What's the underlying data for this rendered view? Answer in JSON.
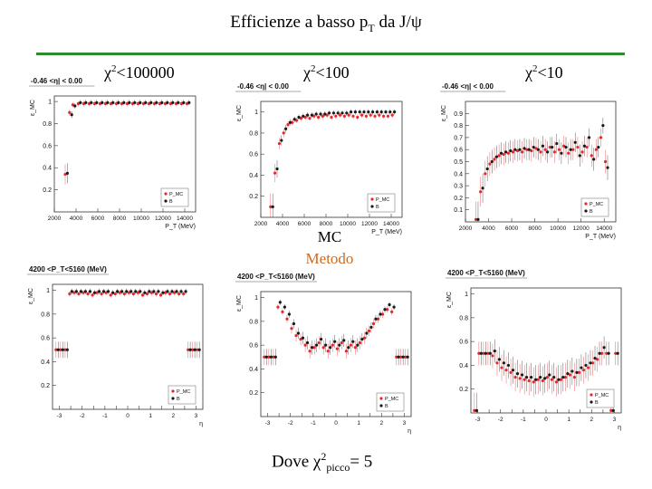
{
  "header": {
    "title_main": "Efficienze a basso p",
    "title_sub": "T",
    "title_tail": " da J/ψ"
  },
  "columns": [
    {
      "chi_base": "χ",
      "chi_sup": "2",
      "chi_tail": "<100000"
    },
    {
      "chi_base": "χ",
      "chi_sup": "2",
      "chi_tail": "<100"
    },
    {
      "chi_base": "χ",
      "chi_sup": "2",
      "chi_tail": "<10"
    }
  ],
  "method": {
    "line1": "MC",
    "line2": "Metodo",
    "line2_color": "#d2691e"
  },
  "footer": {
    "prefix": "Dove χ",
    "sup": "2",
    "sub": "picco",
    "suffix": "= 5"
  },
  "colors": {
    "mc": "#e8262c",
    "method": "#1a1a1a",
    "accent_rule": "#2e8b2e"
  },
  "chart_data": [
    {
      "type": "scatter",
      "cut": "-0.46 <η| < 0.00",
      "ylabel": "ε_MC",
      "xlabel": "P_T (MeV)",
      "xlim": [
        2000,
        15000
      ],
      "ylim": [
        0,
        1.05
      ],
      "xticks": [
        2000,
        4000,
        6000,
        8000,
        10000,
        12000,
        14000
      ],
      "xtick_labels": [
        "2000",
        "4000",
        "6000",
        "8000",
        "10000",
        "12000",
        "14000"
      ],
      "yticks": [
        0.2,
        0.4,
        0.6,
        0.8,
        1
      ],
      "ytick_labels": [
        "0.2",
        "0.4",
        "0.6",
        "0.8",
        "1"
      ],
      "legend": [
        "P_MC",
        "B"
      ],
      "series": [
        {
          "name": "P_MC",
          "x": [
            3100,
            3500,
            3800,
            4300,
            4800,
            5300,
            5800,
            6300,
            6800,
            7300,
            7800,
            8300,
            8800,
            9300,
            9800,
            10300,
            10800,
            11300,
            11800,
            12300,
            12800,
            13300,
            13800,
            14300
          ],
          "y": [
            0.34,
            0.9,
            0.97,
            0.98,
            0.98,
            0.98,
            0.98,
            0.98,
            0.98,
            0.98,
            0.98,
            0.98,
            0.98,
            0.98,
            0.98,
            0.98,
            0.98,
            0.98,
            0.98,
            0.98,
            0.98,
            0.98,
            0.98,
            0.98
          ]
        },
        {
          "name": "B",
          "x": [
            3100,
            3500,
            3800,
            4300,
            4800,
            5300,
            5800,
            6300,
            6800,
            7300,
            7800,
            8300,
            8800,
            9300,
            9800,
            10300,
            10800,
            11300,
            11800,
            12300,
            12800,
            13300,
            13800,
            14300
          ],
          "y": [
            0.35,
            0.88,
            0.96,
            0.99,
            0.99,
            0.99,
            0.99,
            0.99,
            0.99,
            0.99,
            0.99,
            0.99,
            0.99,
            0.99,
            0.99,
            0.99,
            0.99,
            0.99,
            0.99,
            0.99,
            0.99,
            0.99,
            0.99,
            0.99
          ]
        }
      ]
    },
    {
      "type": "scatter",
      "cut": "-0.46 <η| < 0.00",
      "ylabel": "ε_MC",
      "xlabel": "P_T (MeV)",
      "xlim": [
        2000,
        15000
      ],
      "ylim": [
        0,
        1.1
      ],
      "xticks": [
        2000,
        4000,
        6000,
        8000,
        10000,
        12000,
        14000
      ],
      "xtick_labels": [
        "2000",
        "4000",
        "6000",
        "8000",
        "10000",
        "12000",
        "14000"
      ],
      "yticks": [
        0.2,
        0.4,
        0.6,
        0.8,
        1
      ],
      "ytick_labels": [
        "0.2",
        "0.4",
        "0.6",
        "0.8",
        "1"
      ],
      "legend": [
        "P_MC",
        "B"
      ],
      "series": [
        {
          "name": "P_MC",
          "x": [
            3000,
            3400,
            3800,
            4200,
            4600,
            5000,
            5400,
            5800,
            6200,
            6600,
            7000,
            7400,
            7800,
            8200,
            8600,
            9000,
            9400,
            9800,
            10200,
            10600,
            11000,
            11400,
            11800,
            12200,
            12600,
            13000,
            13400,
            13800,
            14200
          ],
          "y": [
            0.1,
            0.42,
            0.7,
            0.8,
            0.88,
            0.9,
            0.92,
            0.94,
            0.95,
            0.94,
            0.96,
            0.95,
            0.96,
            0.97,
            0.95,
            0.96,
            0.97,
            0.96,
            0.97,
            0.96,
            0.95,
            0.97,
            0.96,
            0.97,
            0.96,
            0.97,
            0.96,
            0.96,
            0.97
          ]
        },
        {
          "name": "B",
          "x": [
            3000,
            3400,
            3800,
            4200,
            4600,
            5000,
            5400,
            5800,
            6200,
            6600,
            7000,
            7400,
            7800,
            8200,
            8600,
            9000,
            9400,
            9800,
            10200,
            10600,
            11000,
            11400,
            11800,
            12200,
            12600,
            13000,
            13400,
            13800,
            14200
          ],
          "y": [
            0.1,
            0.46,
            0.73,
            0.84,
            0.9,
            0.93,
            0.95,
            0.96,
            0.97,
            0.97,
            0.98,
            0.98,
            0.98,
            0.99,
            0.99,
            0.99,
            0.99,
            0.99,
            1.0,
            1.0,
            1.0,
            1.0,
            1.0,
            1.0,
            1.0,
            1.0,
            1.0,
            1.0,
            1.0
          ]
        }
      ]
    },
    {
      "type": "scatter",
      "cut": "-0.46 <η| < 0.00",
      "ylabel": "ε_MC",
      "xlabel": "P_T (MeV)",
      "xlim": [
        2000,
        15000
      ],
      "ylim": [
        0,
        1.0
      ],
      "xticks": [
        2000,
        4000,
        6000,
        8000,
        10000,
        12000,
        14000
      ],
      "xtick_labels": [
        "2000",
        "4000",
        "6000",
        "8000",
        "10000",
        "12000",
        "14000"
      ],
      "yticks": [
        0.1,
        0.2,
        0.3,
        0.4,
        0.5,
        0.6,
        0.7,
        0.8,
        0.9
      ],
      "ytick_labels": [
        "0.1",
        "0.2",
        "0.3",
        "0.4",
        "0.5",
        "0.6",
        "0.7",
        "0.8",
        "0.9"
      ],
      "legend": [
        "P_MC",
        "B"
      ],
      "series": [
        {
          "name": "P_MC",
          "x": [
            3000,
            3400,
            3800,
            4200,
            4600,
            5000,
            5400,
            5800,
            6200,
            6600,
            7000,
            7400,
            7800,
            8200,
            8600,
            9000,
            9400,
            9800,
            10200,
            10600,
            11000,
            11400,
            11800,
            12200,
            12600,
            13000,
            13400,
            13800,
            14200
          ],
          "y": [
            0.02,
            0.25,
            0.4,
            0.48,
            0.52,
            0.55,
            0.56,
            0.57,
            0.58,
            0.59,
            0.58,
            0.6,
            0.59,
            0.61,
            0.58,
            0.6,
            0.62,
            0.58,
            0.6,
            0.63,
            0.57,
            0.6,
            0.62,
            0.58,
            0.62,
            0.55,
            0.6,
            0.7,
            0.5
          ]
        },
        {
          "name": "B",
          "x": [
            3000,
            3400,
            3800,
            4200,
            4600,
            5000,
            5400,
            5800,
            6200,
            6600,
            7000,
            7400,
            7800,
            8200,
            8600,
            9000,
            9400,
            9800,
            10200,
            10600,
            11000,
            11400,
            11800,
            12200,
            12600,
            13000,
            13400,
            13800,
            14200
          ],
          "y": [
            0.02,
            0.28,
            0.44,
            0.5,
            0.54,
            0.57,
            0.58,
            0.59,
            0.6,
            0.6,
            0.61,
            0.6,
            0.62,
            0.6,
            0.63,
            0.58,
            0.62,
            0.65,
            0.57,
            0.62,
            0.6,
            0.66,
            0.55,
            0.63,
            0.7,
            0.52,
            0.62,
            0.8,
            0.45
          ]
        }
      ]
    },
    {
      "type": "scatter",
      "cut": "4200 <P_T<5160 (MeV)",
      "ylabel": "ε_MC",
      "xlabel": "η",
      "xlim": [
        -3.3,
        3.3
      ],
      "ylim": [
        0,
        1.05
      ],
      "xticks": [
        -3,
        -2.5,
        -2,
        -1.5,
        -1,
        -0.5,
        0,
        0.5,
        1,
        1.5,
        2,
        2.5,
        3
      ],
      "xtick_labels": [
        "-3",
        "",
        "-2",
        "",
        "-1",
        "",
        "0",
        "",
        "1",
        "",
        "2",
        "",
        "3"
      ],
      "yticks": [
        0.2,
        0.4,
        0.6,
        0.8,
        1
      ],
      "ytick_labels": [
        "0.2",
        "0.4",
        "0.6",
        "0.8",
        "1"
      ],
      "legend": [
        "P_MC",
        "B"
      ],
      "series": [
        {
          "name": "P_MC",
          "x": [
            -3.1,
            -2.9,
            -2.7,
            -2.5,
            -2.3,
            -2.1,
            -1.9,
            -1.7,
            -1.5,
            -1.3,
            -1.1,
            -0.9,
            -0.7,
            -0.5,
            -0.3,
            -0.1,
            0.1,
            0.3,
            0.5,
            0.7,
            0.9,
            1.1,
            1.3,
            1.5,
            1.7,
            1.9,
            2.1,
            2.3,
            2.5,
            2.7,
            2.9,
            3.1
          ],
          "y": [
            0.5,
            0.5,
            0.5,
            0.97,
            0.98,
            0.97,
            0.98,
            0.97,
            0.96,
            0.98,
            0.97,
            0.98,
            0.96,
            0.97,
            0.98,
            0.97,
            0.98,
            0.97,
            0.98,
            0.96,
            0.97,
            0.98,
            0.97,
            0.96,
            0.98,
            0.97,
            0.98,
            0.97,
            0.97,
            0.5,
            0.5,
            0.5
          ]
        },
        {
          "name": "B",
          "x": [
            -3.1,
            -2.9,
            -2.7,
            -2.5,
            -2.3,
            -2.1,
            -1.9,
            -1.7,
            -1.5,
            -1.3,
            -1.1,
            -0.9,
            -0.7,
            -0.5,
            -0.3,
            -0.1,
            0.1,
            0.3,
            0.5,
            0.7,
            0.9,
            1.1,
            1.3,
            1.5,
            1.7,
            1.9,
            2.1,
            2.3,
            2.5,
            2.7,
            2.9,
            3.1
          ],
          "y": [
            0.5,
            0.5,
            0.5,
            0.99,
            0.99,
            0.99,
            0.99,
            0.99,
            0.98,
            0.99,
            0.99,
            0.99,
            0.98,
            0.99,
            0.99,
            0.99,
            0.99,
            0.99,
            0.99,
            0.98,
            0.99,
            0.99,
            0.99,
            0.98,
            0.99,
            0.99,
            0.99,
            0.99,
            0.99,
            0.5,
            0.5,
            0.5
          ]
        }
      ]
    },
    {
      "type": "scatter",
      "cut": "4200 <P_T<5160 (MeV)",
      "ylabel": "ε_MC",
      "xlabel": "η",
      "xlim": [
        -3.3,
        3.3
      ],
      "ylim": [
        0,
        1.05
      ],
      "xticks": [
        -3,
        -2.5,
        -2,
        -1.5,
        -1,
        -0.5,
        0,
        0.5,
        1,
        1.5,
        2,
        2.5,
        3
      ],
      "xtick_labels": [
        "-3",
        "",
        "-2",
        "",
        "-1",
        "",
        "0",
        "",
        "1",
        "",
        "2",
        "",
        "3"
      ],
      "yticks": [
        0.2,
        0.4,
        0.6,
        0.8,
        1
      ],
      "ytick_labels": [
        "0.2",
        "0.4",
        "0.6",
        "0.8",
        "1"
      ],
      "legend": [
        "P_MC",
        "B"
      ],
      "series": [
        {
          "name": "P_MC",
          "x": [
            -3.1,
            -2.9,
            -2.7,
            -2.5,
            -2.3,
            -2.1,
            -1.9,
            -1.7,
            -1.5,
            -1.3,
            -1.1,
            -0.9,
            -0.7,
            -0.5,
            -0.3,
            -0.1,
            0.1,
            0.3,
            0.5,
            0.7,
            0.9,
            1.1,
            1.3,
            1.5,
            1.7,
            1.9,
            2.1,
            2.3,
            2.5,
            2.7,
            2.9,
            3.1
          ],
          "y": [
            0.5,
            0.5,
            0.5,
            0.92,
            0.88,
            0.82,
            0.74,
            0.68,
            0.65,
            0.6,
            0.55,
            0.58,
            0.62,
            0.58,
            0.55,
            0.6,
            0.57,
            0.62,
            0.55,
            0.6,
            0.58,
            0.62,
            0.66,
            0.72,
            0.78,
            0.82,
            0.86,
            0.9,
            0.88,
            0.5,
            0.5,
            0.5
          ]
        },
        {
          "name": "B",
          "x": [
            -3.1,
            -2.9,
            -2.7,
            -2.5,
            -2.3,
            -2.1,
            -1.9,
            -1.7,
            -1.5,
            -1.3,
            -1.1,
            -0.9,
            -0.7,
            -0.5,
            -0.3,
            -0.1,
            0.1,
            0.3,
            0.5,
            0.7,
            0.9,
            1.1,
            1.3,
            1.5,
            1.7,
            1.9,
            2.1,
            2.3,
            2.5,
            2.7,
            2.9,
            3.1
          ],
          "y": [
            0.5,
            0.5,
            0.5,
            0.96,
            0.92,
            0.86,
            0.78,
            0.7,
            0.66,
            0.62,
            0.58,
            0.6,
            0.65,
            0.6,
            0.58,
            0.63,
            0.6,
            0.64,
            0.58,
            0.63,
            0.6,
            0.65,
            0.7,
            0.75,
            0.82,
            0.86,
            0.9,
            0.94,
            0.92,
            0.5,
            0.5,
            0.5
          ]
        }
      ]
    },
    {
      "type": "scatter",
      "cut": "4200 <P_T<5160 (MeV)",
      "ylabel": "ε_MC",
      "xlabel": "η",
      "xlim": [
        -3.3,
        3.3
      ],
      "ylim": [
        0,
        1.05
      ],
      "xticks": [
        -3,
        -2.5,
        -2,
        -1.5,
        -1,
        -0.5,
        0,
        0.5,
        1,
        1.5,
        2,
        2.5,
        3
      ],
      "xtick_labels": [
        "-3",
        "",
        "-2",
        "",
        "-1",
        "",
        "0",
        "",
        "1",
        "",
        "2",
        "",
        "3"
      ],
      "yticks": [
        0.2,
        0.4,
        0.6,
        0.8,
        1
      ],
      "ytick_labels": [
        "0.2",
        "0.4",
        "0.6",
        "0.8",
        "1"
      ],
      "legend": [
        "P_MC",
        "B"
      ],
      "series": [
        {
          "name": "P_MC",
          "x": [
            -3.1,
            -2.9,
            -2.7,
            -2.5,
            -2.3,
            -2.1,
            -1.9,
            -1.7,
            -1.5,
            -1.3,
            -1.1,
            -0.9,
            -0.7,
            -0.5,
            -0.3,
            -0.1,
            0.1,
            0.3,
            0.5,
            0.7,
            0.9,
            1.1,
            1.3,
            1.5,
            1.7,
            1.9,
            2.1,
            2.3,
            2.5,
            2.7,
            2.9,
            3.1
          ],
          "y": [
            0.02,
            0.5,
            0.5,
            0.5,
            0.48,
            0.42,
            0.38,
            0.36,
            0.34,
            0.3,
            0.29,
            0.28,
            0.27,
            0.26,
            0.28,
            0.27,
            0.3,
            0.28,
            0.26,
            0.28,
            0.3,
            0.32,
            0.3,
            0.34,
            0.36,
            0.38,
            0.42,
            0.45,
            0.5,
            0.5,
            0.02,
            0.5
          ]
        },
        {
          "name": "B",
          "x": [
            -3.1,
            -2.9,
            -2.7,
            -2.5,
            -2.3,
            -2.1,
            -1.9,
            -1.7,
            -1.5,
            -1.3,
            -1.1,
            -0.9,
            -0.7,
            -0.5,
            -0.3,
            -0.1,
            0.1,
            0.3,
            0.5,
            0.7,
            0.9,
            1.1,
            1.3,
            1.5,
            1.7,
            1.9,
            2.1,
            2.3,
            2.5,
            2.7,
            2.9,
            3.1
          ],
          "y": [
            0.02,
            0.5,
            0.5,
            0.5,
            0.52,
            0.45,
            0.42,
            0.4,
            0.36,
            0.33,
            0.32,
            0.3,
            0.3,
            0.28,
            0.3,
            0.29,
            0.32,
            0.3,
            0.28,
            0.3,
            0.33,
            0.35,
            0.34,
            0.38,
            0.4,
            0.42,
            0.46,
            0.5,
            0.55,
            0.5,
            0.02,
            0.5
          ]
        }
      ]
    }
  ]
}
